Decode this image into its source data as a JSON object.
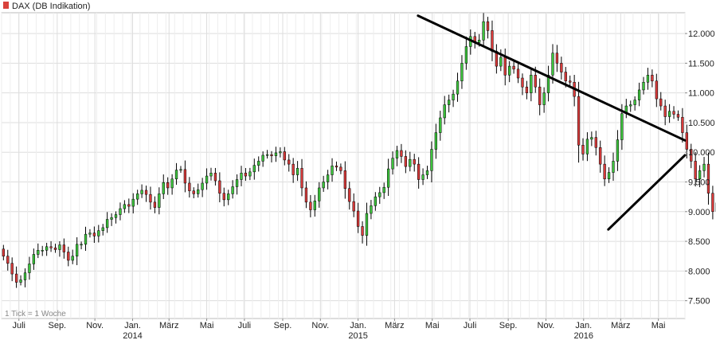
{
  "chart_data": {
    "type": "candlestick",
    "legend": {
      "label": "DAX (DB Indikation)",
      "color": "#d9423c",
      "position": "top-left"
    },
    "note": "1 Tick = 1 Woche",
    "colors": {
      "up": "#3cc43c",
      "down": "#d93a3a",
      "wick": "#000000",
      "trendline": "#000000",
      "grid": "#dddddd"
    },
    "yaxis": {
      "ticks": [
        7500,
        8000,
        8500,
        9000,
        9500,
        10000,
        10500,
        11000,
        11500,
        12000
      ],
      "tick_labels": [
        "7.500",
        "8.000",
        "8.500",
        "9.000",
        "9.500",
        "10.000",
        "10.500",
        "11.000",
        "11.500",
        "12.000"
      ],
      "range": [
        7200,
        12350
      ],
      "position": "right"
    },
    "xaxis": {
      "ticks": [
        {
          "label": "Juli",
          "date": "2013-07-01"
        },
        {
          "label": "Sep.",
          "date": "2013-09-01"
        },
        {
          "label": "Nov.",
          "date": "2013-11-01"
        },
        {
          "label": "Jan.",
          "year": "2014",
          "date": "2014-01-01"
        },
        {
          "label": "März",
          "date": "2014-03-01"
        },
        {
          "label": "Mai",
          "date": "2014-05-01"
        },
        {
          "label": "Juli",
          "date": "2014-07-01"
        },
        {
          "label": "Sep.",
          "date": "2014-09-01"
        },
        {
          "label": "Nov.",
          "date": "2014-11-01"
        },
        {
          "label": "Jan.",
          "year": "2015",
          "date": "2015-01-01"
        },
        {
          "label": "März",
          "date": "2015-03-01"
        },
        {
          "label": "Mai",
          "date": "2015-05-01"
        },
        {
          "label": "Juli",
          "date": "2015-07-01"
        },
        {
          "label": "Sep.",
          "date": "2015-09-01"
        },
        {
          "label": "Nov.",
          "date": "2015-11-01"
        },
        {
          "label": "Jan.",
          "year": "2016",
          "date": "2016-01-01"
        },
        {
          "label": "März",
          "date": "2016-03-01"
        },
        {
          "label": "Mai",
          "date": "2016-05-01"
        }
      ],
      "range": [
        "2013-06-03",
        "2016-06-13"
      ]
    },
    "close_weekly": [
      8250,
      8130,
      7950,
      7810,
      7850,
      7970,
      8120,
      8280,
      8350,
      8350,
      8410,
      8390,
      8360,
      8440,
      8320,
      8180,
      8250,
      8450,
      8450,
      8620,
      8640,
      8590,
      8680,
      8730,
      8870,
      8900,
      8950,
      9050,
      9120,
      9090,
      9210,
      9300,
      9360,
      9290,
      9160,
      9070,
      9300,
      9490,
      9400,
      9550,
      9700,
      9710,
      9480,
      9350,
      9300,
      9370,
      9480,
      9600,
      9650,
      9520,
      9310,
      9200,
      9300,
      9420,
      9540,
      9650,
      9600,
      9670,
      9780,
      9850,
      9950,
      9960,
      9940,
      9990,
      10010,
      9870,
      9800,
      9620,
      9730,
      9400,
      9160,
      9030,
      9180,
      9400,
      9500,
      9620,
      9770,
      9750,
      9690,
      9390,
      9170,
      9010,
      8750,
      8600,
      8970,
      9100,
      9250,
      9320,
      9410,
      9720,
      9900,
      10030,
      9930,
      9760,
      9880,
      9800,
      9540,
      9620,
      9690,
      10050,
      10330,
      10580,
      10800,
      10880,
      10980,
      11200,
      11500,
      11780,
      11950,
      11850,
      11890,
      12200,
      12050,
      11700,
      11450,
      11600,
      11300,
      11450,
      11400,
      11250,
      11100,
      11000,
      11300,
      11100,
      10800,
      11000,
      11300,
      11670,
      11500,
      11350,
      11200,
      11180,
      10940,
      10120,
      9970,
      10220,
      10250,
      10080,
      9800,
      9550,
      9660,
      9850,
      10210,
      10650,
      10780,
      10800,
      10880,
      11050,
      11180,
      11300,
      11200,
      10900,
      10780,
      10600,
      10690,
      10640,
      10590,
      10330,
      10050,
      9850,
      9550,
      9690,
      9800,
      9310,
      9000,
      9150,
      9250,
      9580,
      9700,
      9820,
      9900,
      9880,
      9950,
      9800,
      9680,
      9950,
      10090,
      10290,
      10320,
      10040,
      9940,
      9910,
      9900,
      10100,
      10290,
      10150
    ],
    "trendlines": [
      {
        "name": "resistance",
        "from": {
          "date": "2015-04-08",
          "value": 12300
        },
        "to": {
          "date": "2016-06-13",
          "value": 10200
        }
      },
      {
        "name": "support",
        "from": {
          "date": "2016-02-10",
          "value": 8700
        },
        "to": {
          "date": "2016-06-13",
          "value": 9950
        }
      }
    ]
  }
}
